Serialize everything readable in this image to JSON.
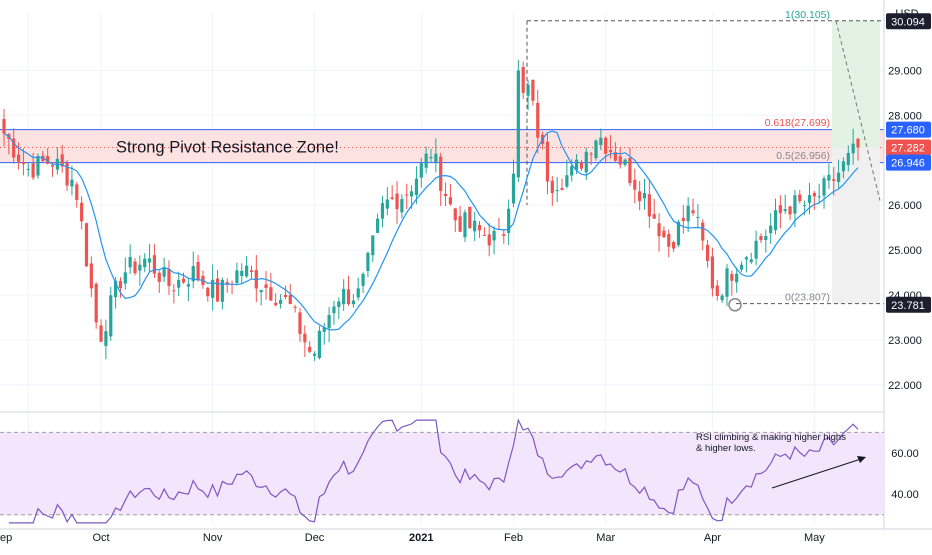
{
  "currency_label": "USD",
  "colors": {
    "up": "#26a69a",
    "down": "#ef5350",
    "ma": "#2196f3",
    "rsi": "#7e57c2",
    "rsi_band": "#f3e5fc",
    "zone_fill": "#fde2e2",
    "zone_border": "#2962ff",
    "fib_target_fill": "#e2f3e4",
    "fib_stop_fill": "#f0f0f0",
    "price_label_bg": "#1e1e2e",
    "last_price_bg": "#ef5350",
    "level_bg": "#2962ff"
  },
  "chart_data": [
    {
      "type": "candlestick",
      "title": "",
      "annotation": "Strong Pivot Resistance Zone!",
      "x_ticks": [
        "ep",
        "Oct",
        "Nov",
        "Dec",
        "2021",
        "Feb",
        "Mar",
        "Apr",
        "May"
      ],
      "y_ticks": [
        22.0,
        23.0,
        24.0,
        25.0,
        26.0,
        27.0,
        28.0,
        29.0
      ],
      "ylim": [
        21.55,
        30.3
      ],
      "resistance_zone": [
        26.946,
        27.68
      ],
      "price_labels": [
        {
          "text": "30.094",
          "value": 30.094
        },
        {
          "text": "27.680",
          "value": 27.68
        },
        {
          "text": "27.282",
          "value": 27.282
        },
        {
          "text": "26.946",
          "value": 26.946
        },
        {
          "text": "23.781",
          "value": 23.781
        }
      ],
      "fib_levels": [
        {
          "label": "1(30.105)",
          "value": 30.105
        },
        {
          "label": "0.618(27.699)",
          "value": 27.699
        },
        {
          "label": "0.5(26.956)",
          "value": 26.956
        },
        {
          "label": "0(23.807)",
          "value": 23.807
        }
      ],
      "anchors": [
        "Aug 31",
        "Sep 7",
        "Sep 14",
        "Sep 21",
        "Sep 28",
        "Oct 5",
        "Oct 12",
        "Oct 19",
        "Oct 26",
        "Nov 2",
        "Nov 9",
        "Nov 16",
        "Nov 23",
        "Nov 30",
        "Dec 7",
        "Dec 14",
        "Dec 21",
        "Dec 28",
        "Jan 4",
        "Jan 11",
        "Jan 18",
        "Jan 25",
        "Feb 1",
        "Feb 8",
        "Feb 15",
        "Feb 22",
        "Mar 1",
        "Mar 8",
        "Mar 15",
        "Mar 22",
        "Mar 29",
        "Apr 5",
        "Apr 12",
        "Apr 19",
        "Apr 26",
        "May 3",
        "May 7"
      ],
      "anchor_close": [
        27.6,
        26.8,
        27.0,
        26.5,
        23.0,
        24.5,
        24.8,
        24.2,
        24.5,
        24.0,
        24.6,
        24.2,
        23.8,
        22.6,
        24.0,
        24.0,
        26.0,
        26.3,
        27.2,
        25.7,
        25.4,
        25.2,
        28.8,
        26.5,
        26.7,
        27.6,
        27.0,
        26.2,
        25.1,
        26.0,
        24.0,
        24.8,
        25.3,
        26.0,
        26.0,
        26.6,
        27.282
      ],
      "series": [
        {
          "name": "",
          "type": "ma",
          "period": 9
        },
        {
          "name": "",
          "type": "rsi"
        }
      ]
    },
    {
      "type": "line",
      "panel": "RSI",
      "annotation": "RSI climbing & making higher highs\n& higher lows.",
      "y_ticks": [
        40.0,
        60.0
      ],
      "ylim": [
        25,
        77
      ],
      "band": [
        30,
        70
      ]
    }
  ]
}
